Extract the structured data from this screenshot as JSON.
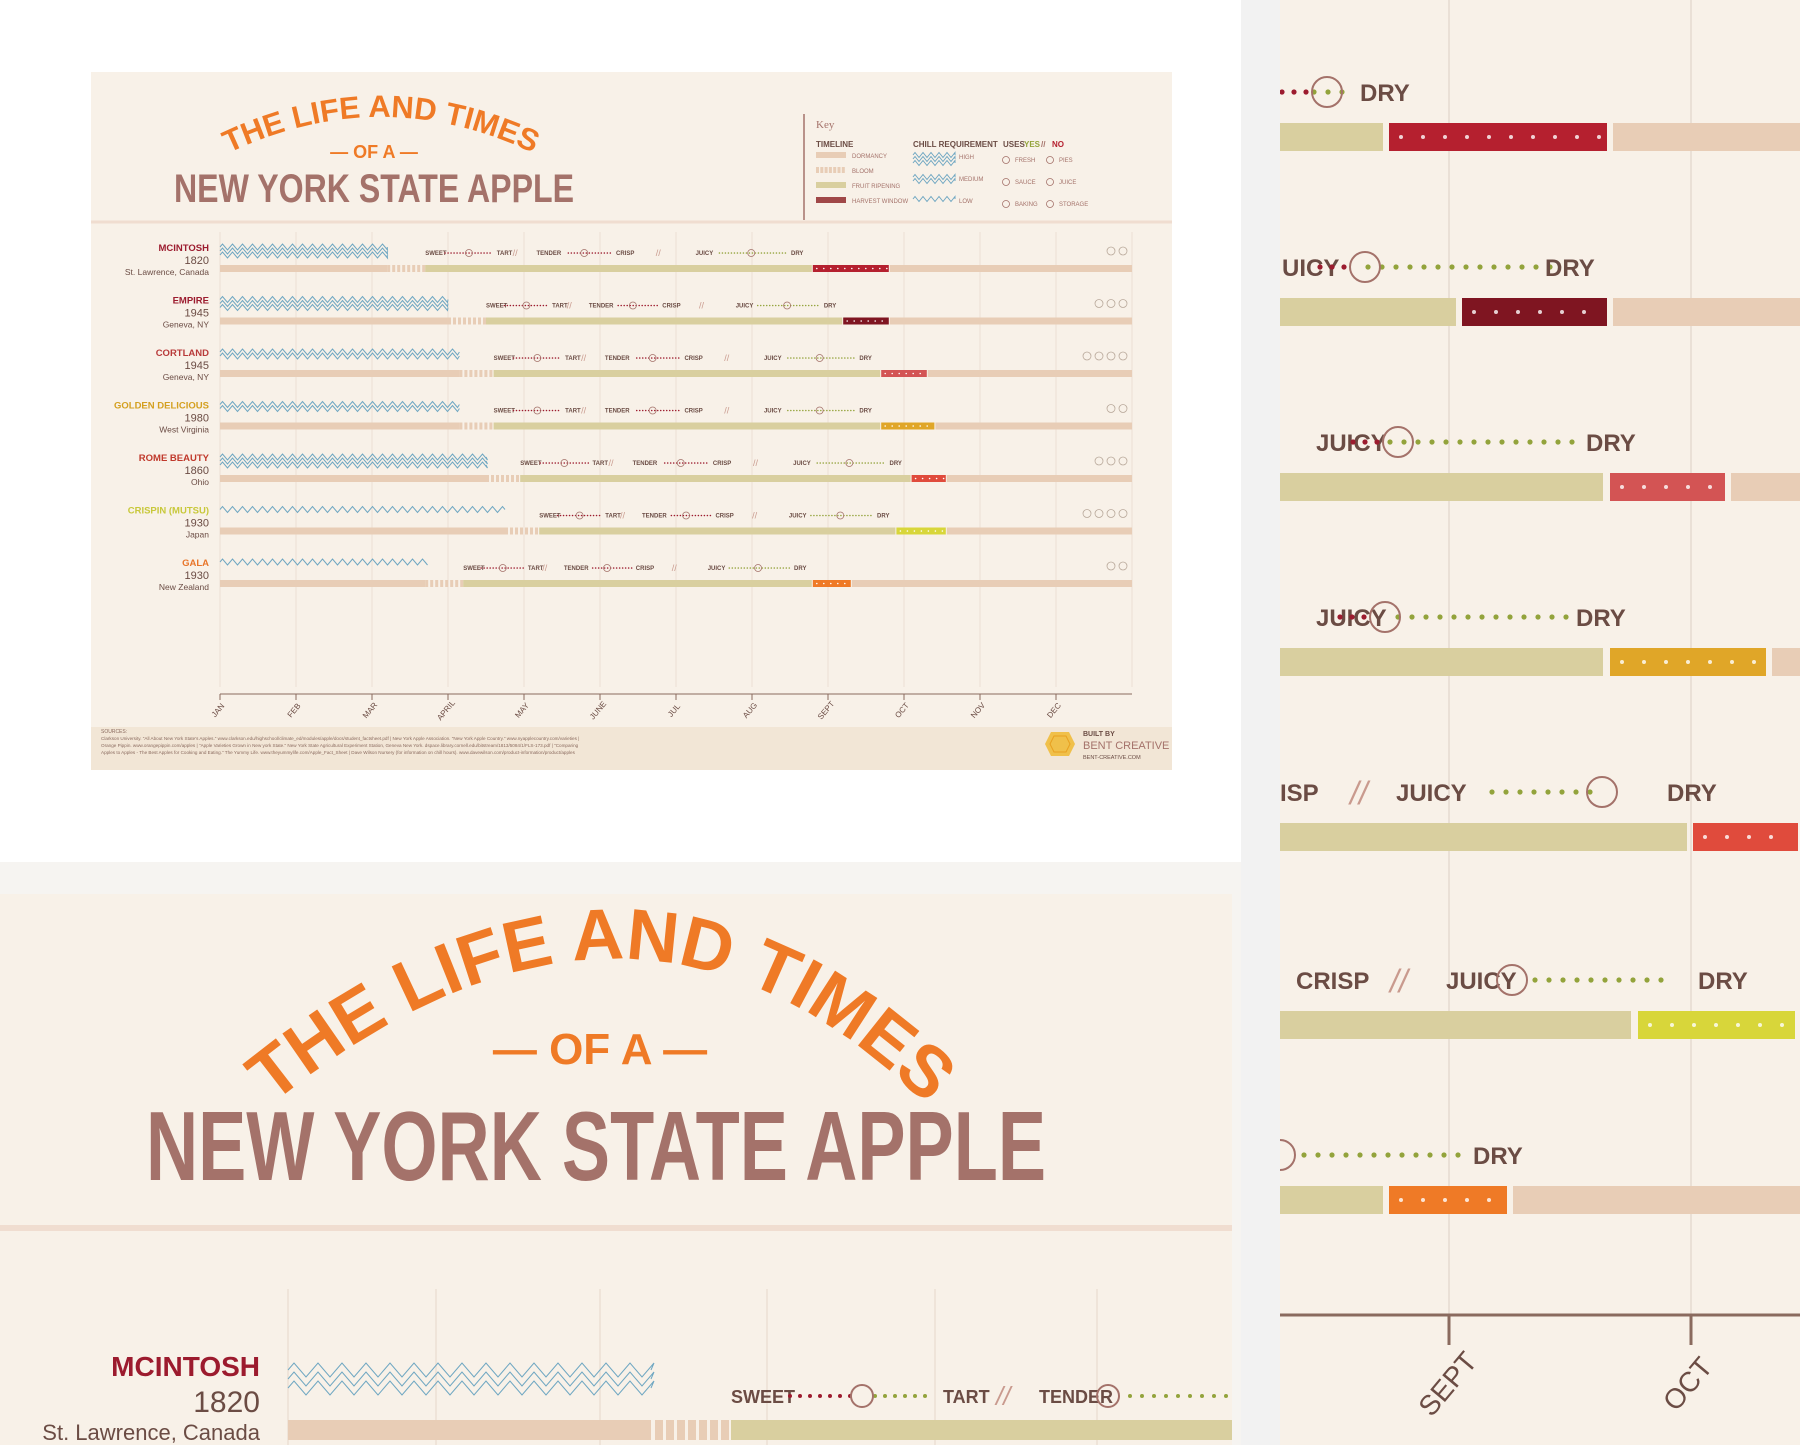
{
  "title": {
    "line1": "THE LIFE AND TIMES",
    "line2": "— OF A —",
    "line3": "NEW YORK STATE APPLE"
  },
  "key": {
    "heading": "Key",
    "timeline_heading": "TIMELINE",
    "timeline_items": [
      "DORMANCY",
      "BLOOM",
      "FRUIT RIPENING",
      "HARVEST WINDOW"
    ],
    "chill_heading": "CHILL REQUIREMENT",
    "chill_items": [
      "HIGH",
      "MEDIUM",
      "LOW"
    ],
    "uses_heading": "USES",
    "uses_yes": "YES",
    "uses_sep": "//",
    "uses_no": "NO",
    "uses_items": [
      "FRESH",
      "PIES",
      "SAUCE",
      "JUICE",
      "BAKING",
      "STORAGE"
    ]
  },
  "apples": [
    {
      "name": "MCINTOSH",
      "year": "1820",
      "origin": "St. Lawrence, Canada",
      "name_color": "#9c1b2e",
      "harvest_color": "#b5202f"
    },
    {
      "name": "EMPIRE",
      "year": "1945",
      "origin": "Geneva, NY",
      "name_color": "#9c1b2e",
      "harvest_color": "#7f1521"
    },
    {
      "name": "CORTLAND",
      "year": "1945",
      "origin": "Geneva, NY",
      "name_color": "#b83a3a",
      "harvest_color": "#d35454"
    },
    {
      "name": "GOLDEN DELICIOUS",
      "year": "1980",
      "origin": "West Virginia",
      "name_color": "#d4a020",
      "harvest_color": "#e0a628"
    },
    {
      "name": "ROME BEAUTY",
      "year": "1860",
      "origin": "Ohio",
      "name_color": "#c0392b",
      "harvest_color": "#e04b3c"
    },
    {
      "name": "CRISPIN (MUTSU)",
      "year": "1930",
      "origin": "Japan",
      "name_color": "#c8c83a",
      "harvest_color": "#d8d63a"
    },
    {
      "name": "GALA",
      "year": "1930",
      "origin": "New Zealand",
      "name_color": "#e8752a",
      "harvest_color": "#ef7a26"
    }
  ],
  "taste_words": [
    "SWEET",
    "TART",
    "TENDER",
    "CRISP",
    "JUICY",
    "DRY"
  ],
  "taste_sep": "//",
  "months": [
    "JAN",
    "FEB",
    "MAR",
    "APRIL",
    "MAY",
    "JUNE",
    "JUL",
    "AUG",
    "SEPT",
    "OCT",
    "NOV",
    "DEC"
  ],
  "sources": {
    "label": "SOURCES:",
    "line1": "Clarkson University. \"All About New York State's Apples.\" www.clarkson.edu/highschool/climate_ed/modules/apple/docs/student_factsheet.pdf | New York Apple Association. \"New York Apple Country.\" www.nyapplecountry.com/varieties |",
    "line2": "Orange Pippin. www.orangepippin.com/apples | \"Apple Varieties Grown in New york State.\" New York State Agricultural Experiment Station, Geneva New York. dspace.library.cornell.edu/bitstream/1813/5084/1/FLS-173.pdf | \"Comparing",
    "line3": "Apples to Apples - The Best Apples for Cooking and Eating.\" The Yummy Life. www.theyummylife.com/Apple_Fact_Sheet | Dave Wilson Nursery (for information on chill hours). www.davewilson.com/product-information/product/apples"
  },
  "credit": {
    "built_by": "BUILT BY",
    "brand": "BENT CREATIVE",
    "url": "BENT-CREATIVE.COM"
  },
  "zoom_left": {
    "apple": "MCINTOSH",
    "year": "1820",
    "origin": "St. Lawrence, Canada",
    "words": [
      "SWEET",
      "TART",
      "//",
      "TENDER"
    ]
  },
  "zoom_right": {
    "rows": [
      {
        "left_word": "",
        "words": [
          "DRY"
        ],
        "harvest_color": "#b5202f"
      },
      {
        "left_word": "UICY",
        "words": [
          "DRY"
        ],
        "harvest_color": "#7f1521"
      },
      {
        "left_word": "JUICY",
        "words": [
          "DRY"
        ],
        "harvest_color": "#d35454"
      },
      {
        "left_word": "JUICY",
        "words": [
          "DRY"
        ],
        "harvest_color": "#e0a628"
      },
      {
        "left_word": "ISP",
        "mid_word": "JUICY",
        "words": [
          "DRY"
        ],
        "harvest_color": "#e04b3c"
      },
      {
        "left_word": "CRISP",
        "mid_word": "JUICY",
        "words": [
          "DRY"
        ],
        "harvest_color": "#d8d63a"
      },
      {
        "left_word": "",
        "words": [
          "DRY"
        ],
        "harvest_color": "#ef7a26"
      }
    ],
    "months": [
      "SEPT",
      "OCT"
    ]
  },
  "colors": {
    "orange": "#ef7a26",
    "brown": "#a4726a",
    "beige_bar": "#e8cdb6",
    "ripening_bar": "#d9cf9f",
    "chill_blue": "#6fa7c2",
    "dotted_red": "#9c1b2e",
    "dotted_green": "#93a33b"
  }
}
